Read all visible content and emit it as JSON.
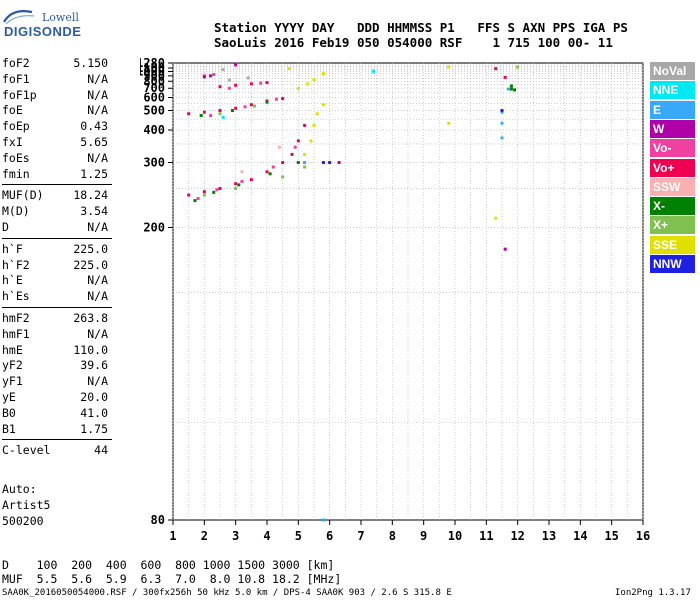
{
  "logo": {
    "line1": "Lowell",
    "line2": "DIGISONDE"
  },
  "header": {
    "line1": "Station YYYY DAY   DDD HHMMSS P1   FFS S AXN PPS IGA PS",
    "line2": "SaoLuis 2016 Feb19 050 054000 RSF    1 715 100 00- 11"
  },
  "params": [
    {
      "k": "foF2",
      "v": "5.150"
    },
    {
      "k": "foF1",
      "v": "N/A"
    },
    {
      "k": "foF1p",
      "v": "N/A"
    },
    {
      "k": "foE",
      "v": "N/A"
    },
    {
      "k": "foEp",
      "v": "0.43"
    },
    {
      "k": "fxI",
      "v": "5.65"
    },
    {
      "k": "foEs",
      "v": "N/A"
    },
    {
      "k": "fmin",
      "v": "1.25"
    },
    {
      "k": "MUF(D)",
      "v": "18.24"
    },
    {
      "k": "M(D)",
      "v": "3.54"
    },
    {
      "k": "D",
      "v": "N/A"
    },
    {
      "k": "h`F",
      "v": "225.0"
    },
    {
      "k": "h`F2",
      "v": "225.0"
    },
    {
      "k": "h`E",
      "v": "N/A"
    },
    {
      "k": "h`Es",
      "v": "N/A"
    },
    {
      "k": "hmF2",
      "v": "263.8"
    },
    {
      "k": "hmF1",
      "v": "N/A"
    },
    {
      "k": "hmE",
      "v": "110.0"
    },
    {
      "k": "yF2",
      "v": "39.6"
    },
    {
      "k": "yF1",
      "v": "N/A"
    },
    {
      "k": "yE",
      "v": "20.0"
    },
    {
      "k": "B0",
      "v": "41.0"
    },
    {
      "k": "B1",
      "v": "1.75"
    },
    {
      "k": "C-level",
      "v": "44"
    }
  ],
  "autoscale": {
    "line1": "Auto:",
    "line2": "Artist5",
    "line3": "500200"
  },
  "legend": [
    {
      "label": "NoVal",
      "color": "#a8a8a8"
    },
    {
      "label": "NNE",
      "color": "#00e8f0"
    },
    {
      "label": "E",
      "color": "#38a8f8"
    },
    {
      "label": "W",
      "color": "#b000a8"
    },
    {
      "label": "Vo-",
      "color": "#f040a0"
    },
    {
      "label": "Vo+",
      "color": "#f00050"
    },
    {
      "label": "SSW",
      "color": "#f8b0b0"
    },
    {
      "label": "X-",
      "color": "#008000"
    },
    {
      "label": "X+",
      "color": "#80c050"
    },
    {
      "label": "SSE",
      "color": "#e0e000"
    },
    {
      "label": "NNW",
      "color": "#2020e0"
    }
  ],
  "muf_table": {
    "line1": "D    100  200  400  600  800 1000 1500 3000 [km]",
    "line2": "MUF  5.5  5.6  5.9  6.3  7.0  8.0 10.8 18.2 [MHz]"
  },
  "footer": {
    "left": "SAA0K_2016050054000.RSF / 300fx256h 50 kHz 5.0 km / DPS-4 SAA0K 903 / 2.6 S 315.8 E",
    "right": "Ion2Png 1.3.17"
  },
  "chart_data": {
    "type": "scatter",
    "xlabel": "",
    "ylabel": "",
    "xlim": [
      1,
      16
    ],
    "ylim": [
      80,
      1280
    ],
    "y_scale": "reciprocal",
    "x_ticks": [
      1,
      2,
      3,
      4,
      5,
      6,
      7,
      8,
      9,
      10,
      11,
      12,
      13,
      14,
      15,
      16
    ],
    "y_ticks": [
      80,
      200,
      300,
      400,
      500,
      600,
      700,
      800,
      900,
      1000,
      1100,
      1280
    ],
    "grid": true,
    "legend_position": "right",
    "series": [
      {
        "name": "Vo+",
        "color": "#f00050",
        "points": [
          [
            1.5,
            240
          ],
          [
            2.0,
            245
          ],
          [
            2.5,
            250
          ],
          [
            3.0,
            258
          ],
          [
            3.5,
            265
          ],
          [
            4.0,
            280
          ],
          [
            4.5,
            300
          ],
          [
            4.8,
            320
          ],
          [
            5.0,
            360
          ],
          [
            5.2,
            420
          ],
          [
            1.5,
            480
          ],
          [
            2.0,
            490
          ],
          [
            2.5,
            500
          ],
          [
            3.0,
            515
          ],
          [
            3.5,
            540
          ],
          [
            4.0,
            570
          ],
          [
            4.5,
            590
          ],
          [
            2.5,
            720
          ],
          [
            3.0,
            740
          ],
          [
            3.5,
            760
          ],
          [
            4.0,
            780
          ],
          [
            11.3,
            1080
          ],
          [
            11.6,
            870
          ]
        ]
      },
      {
        "name": "Vo-",
        "color": "#f040a0",
        "points": [
          [
            1.8,
            235
          ],
          [
            2.4,
            248
          ],
          [
            3.2,
            262
          ],
          [
            4.2,
            290
          ],
          [
            4.9,
            340
          ],
          [
            2.2,
            470
          ],
          [
            3.3,
            525
          ],
          [
            4.3,
            585
          ],
          [
            2.8,
            700
          ],
          [
            3.8,
            770
          ],
          [
            2.0,
            900
          ],
          [
            2.3,
            930
          ],
          [
            3.0,
            1200
          ]
        ]
      },
      {
        "name": "X-",
        "color": "#008000",
        "points": [
          [
            1.7,
            232
          ],
          [
            2.3,
            244
          ],
          [
            3.1,
            256
          ],
          [
            4.1,
            276
          ],
          [
            5.0,
            300
          ],
          [
            1.9,
            470
          ],
          [
            2.9,
            500
          ],
          [
            4.0,
            560
          ],
          [
            11.8,
            730
          ],
          [
            11.8,
            690
          ],
          [
            11.9,
            680
          ]
        ]
      },
      {
        "name": "X+",
        "color": "#80c050",
        "points": [
          [
            2.0,
            240
          ],
          [
            3.0,
            250
          ],
          [
            4.5,
            270
          ],
          [
            5.2,
            290
          ],
          [
            2.5,
            480
          ],
          [
            3.6,
            530
          ],
          [
            12.0,
            1130
          ]
        ]
      },
      {
        "name": "SSE",
        "color": "#e0e000",
        "points": [
          [
            5.2,
            320
          ],
          [
            5.4,
            360
          ],
          [
            5.5,
            420
          ],
          [
            5.6,
            480
          ],
          [
            5.8,
            540
          ],
          [
            5.0,
            700
          ],
          [
            5.3,
            760
          ],
          [
            5.5,
            830
          ],
          [
            5.8,
            950
          ],
          [
            4.7,
            1080
          ],
          [
            9.8,
            1130
          ],
          [
            9.8,
            430
          ],
          [
            11.3,
            210
          ]
        ]
      },
      {
        "name": "E",
        "color": "#38a8f8",
        "points": [
          [
            5.2,
            300
          ],
          [
            7.4,
            1010
          ],
          [
            11.5,
            490
          ],
          [
            11.5,
            430
          ],
          [
            11.5,
            370
          ],
          [
            11.7,
            690
          ],
          [
            5.8,
            80
          ]
        ]
      },
      {
        "name": "NNW",
        "color": "#2020e0",
        "points": [
          [
            5.8,
            300
          ],
          [
            6.0,
            300
          ],
          [
            11.5,
            500
          ]
        ]
      },
      {
        "name": "W",
        "color": "#b000a8",
        "points": [
          [
            2.0,
            880
          ],
          [
            2.2,
            900
          ],
          [
            3.0,
            1230
          ],
          [
            6.3,
            300
          ],
          [
            11.6,
            180
          ]
        ]
      },
      {
        "name": "NNE",
        "color": "#00e8f0",
        "points": [
          [
            7.4,
            1010
          ],
          [
            2.6,
            460
          ]
        ]
      },
      {
        "name": "NoVal",
        "color": "#a8a8a8",
        "points": [
          [
            2.8,
            820
          ],
          [
            3.4,
            860
          ],
          [
            2.6,
            1050
          ]
        ]
      },
      {
        "name": "SSW",
        "color": "#f8b0b0",
        "points": [
          [
            3.2,
            280
          ],
          [
            4.4,
            340
          ]
        ]
      }
    ]
  }
}
